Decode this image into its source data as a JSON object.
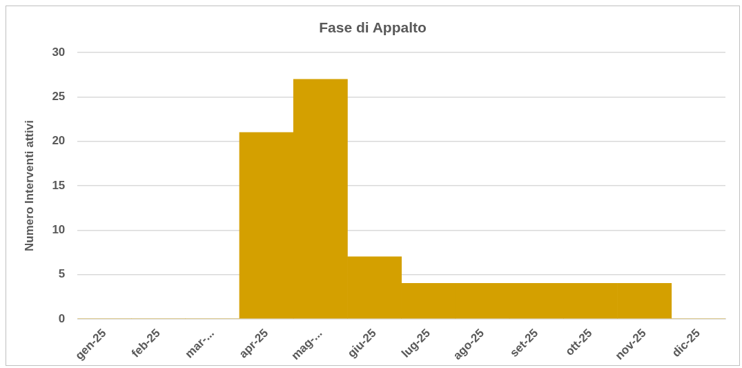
{
  "chart_data": {
    "type": "bar",
    "title": "Fase di Appalto",
    "ylabel": "Numero Interventi attivi",
    "categories": [
      "gen-25",
      "feb-25",
      "mar-...",
      "apr-25",
      "mag-...",
      "giu-25",
      "lug-25",
      "ago-25",
      "set-25",
      "ott-25",
      "nov-25",
      "dic-25"
    ],
    "values": [
      0,
      0,
      0,
      21,
      27,
      7,
      4,
      4,
      4,
      4,
      4,
      0
    ],
    "color": "#d4a000",
    "ylim": [
      0,
      30
    ],
    "yticks": [
      0,
      5,
      10,
      15,
      20,
      25,
      30
    ],
    "grid": "y",
    "legend": false
  }
}
